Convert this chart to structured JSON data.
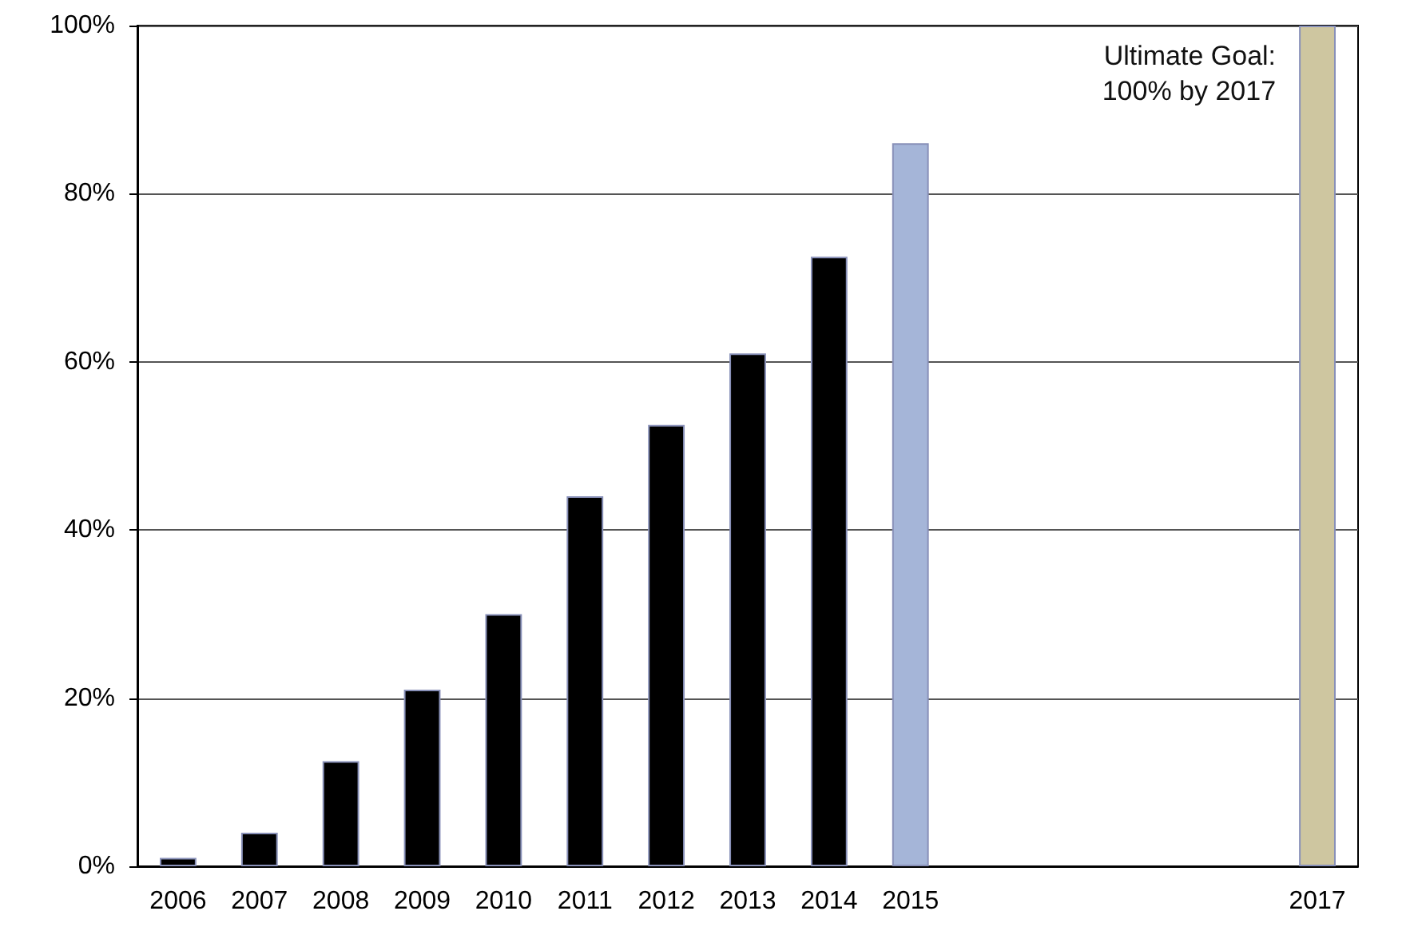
{
  "chart_data": {
    "type": "bar",
    "categories": [
      "2006",
      "2007",
      "2008",
      "2009",
      "2010",
      "2011",
      "2012",
      "2013",
      "2014",
      "2015",
      null,
      null,
      null,
      null,
      "2017"
    ],
    "values": [
      1,
      4,
      12.5,
      21,
      30,
      44,
      52.5,
      61,
      72.5,
      86,
      null,
      null,
      null,
      null,
      100
    ],
    "colors": [
      "#000000",
      "#000000",
      "#000000",
      "#000000",
      "#000000",
      "#000000",
      "#000000",
      "#000000",
      "#000000",
      "#a5b5d8",
      "#000000",
      "#000000",
      "#000000",
      "#000000",
      "#cec6a0"
    ],
    "ylim": [
      0,
      100
    ],
    "yticks": [
      {
        "value": 0,
        "label": "0%"
      },
      {
        "value": 20,
        "label": "20%"
      },
      {
        "value": 40,
        "label": "40%"
      },
      {
        "value": 60,
        "label": "60%"
      },
      {
        "value": 80,
        "label": "80%"
      },
      {
        "value": 100,
        "label": "100%"
      }
    ],
    "annotations": [
      {
        "text": "Ultimate Goal:\n100% by 2017",
        "x": "2017",
        "y": 100
      }
    ],
    "grid": "y"
  }
}
